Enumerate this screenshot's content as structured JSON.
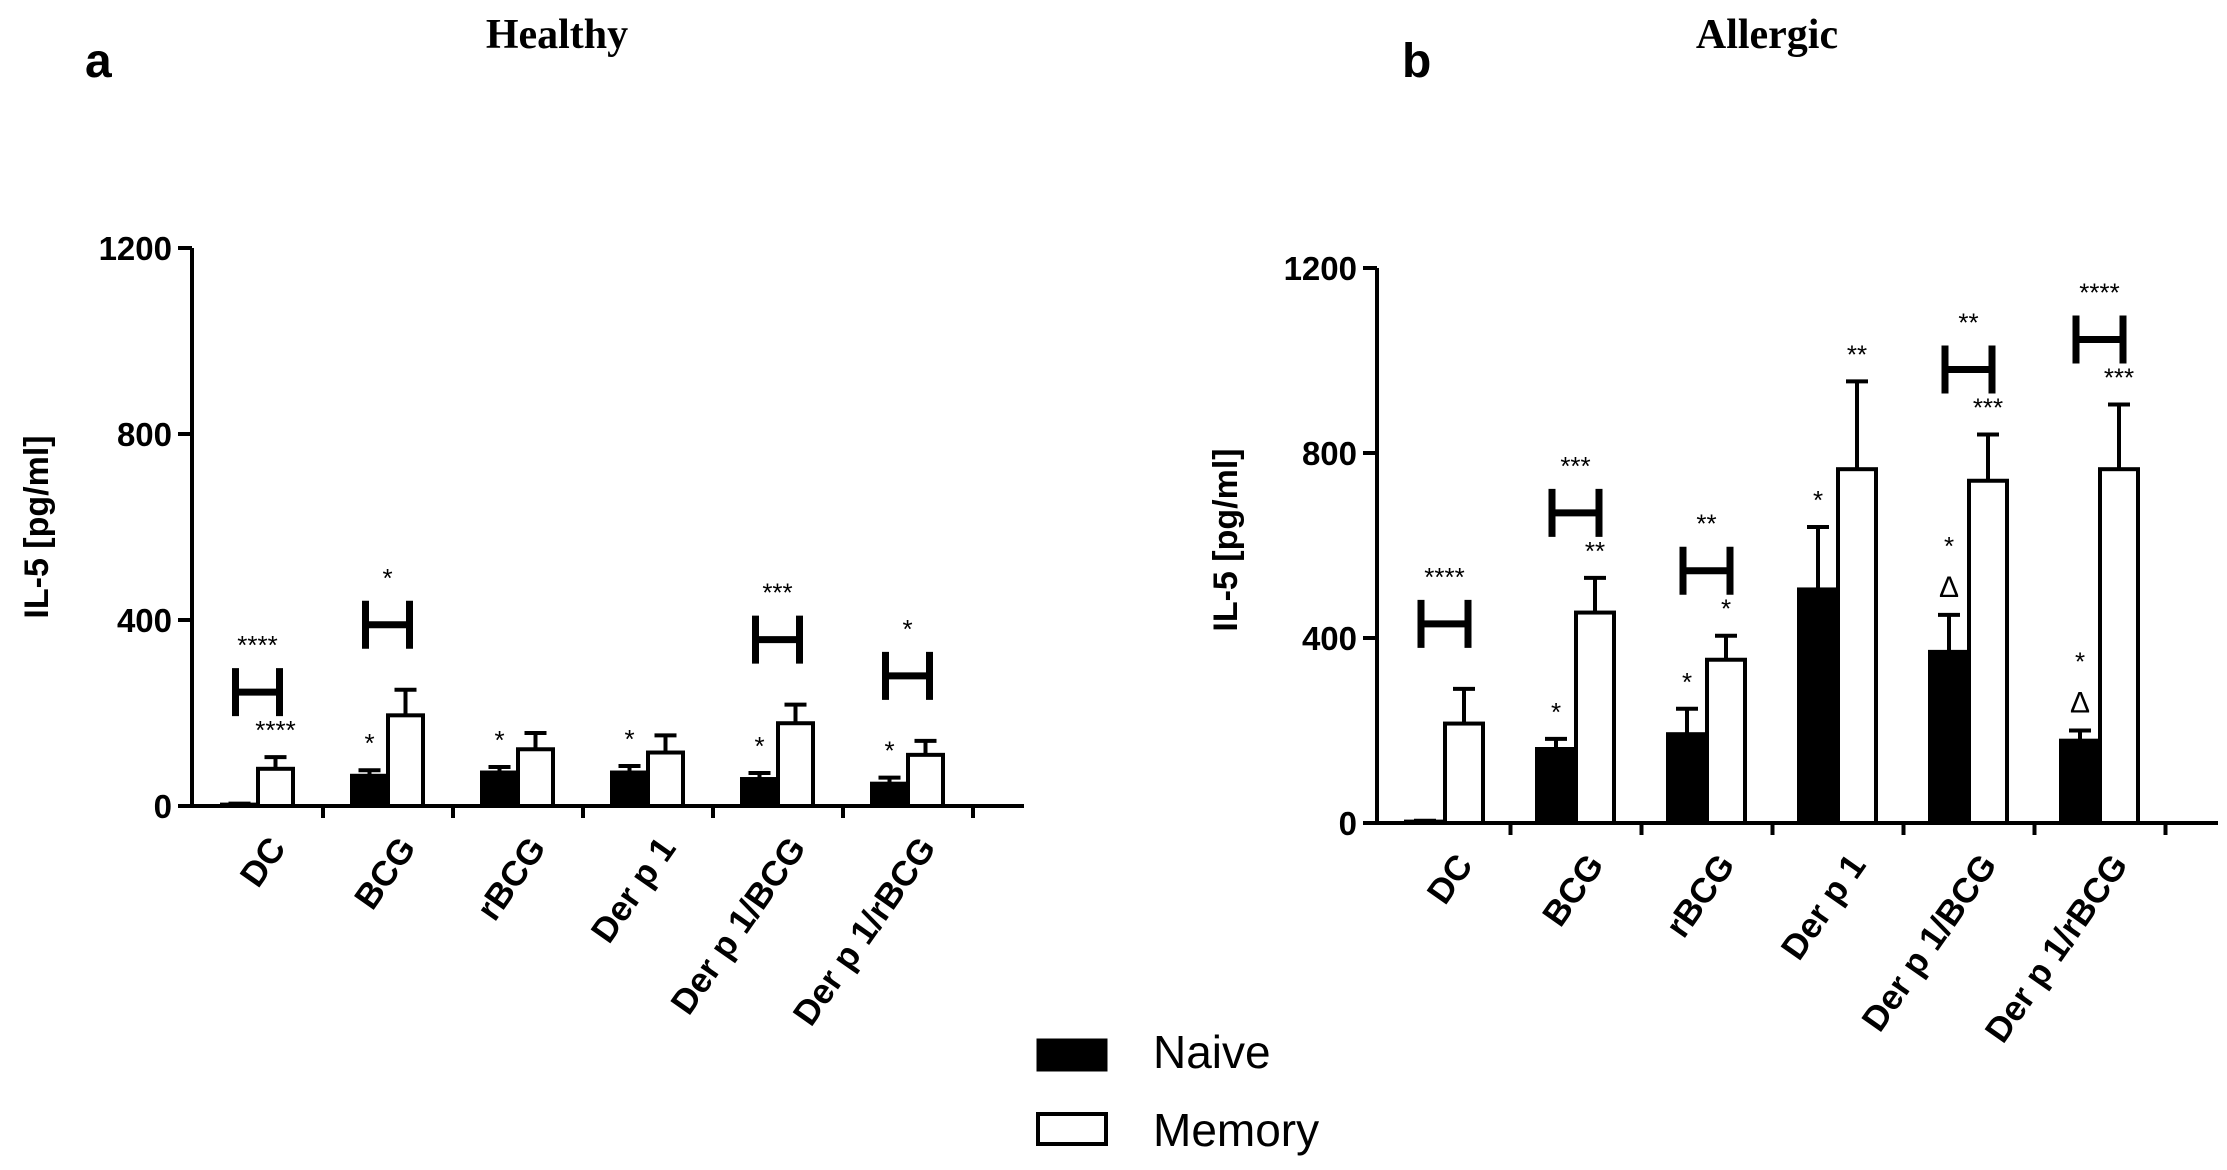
{
  "figure": {
    "legend": {
      "placement": "bottom-center",
      "items": [
        {
          "label": "Naive",
          "fill": "#000000"
        },
        {
          "label": "Memory",
          "fill": "#ffffff"
        }
      ]
    }
  },
  "chart_data": [
    {
      "type": "bar",
      "panel_letter": "a",
      "title": "Healthy",
      "ylabel": "IL-5 [pg/ml]",
      "xlabel": "",
      "ylim": [
        0,
        1200
      ],
      "yticks": [
        0,
        400,
        800,
        1200
      ],
      "categories": [
        "DC",
        "BCG",
        "rBCG",
        "Der p 1",
        "Der p 1/BCG",
        "Der p 1/rBCG"
      ],
      "series": [
        {
          "name": "Naive",
          "color": "#000000",
          "values": [
            3,
            65,
            72,
            72,
            58,
            48
          ],
          "errors": [
            2,
            12,
            12,
            14,
            13,
            13
          ],
          "labels": [
            "",
            "*",
            "*",
            "*",
            "*",
            "*"
          ]
        },
        {
          "name": "Memory",
          "color": "#ffffff",
          "values": [
            80,
            195,
            122,
            115,
            178,
            110
          ],
          "errors": [
            25,
            55,
            35,
            37,
            40,
            30
          ],
          "labels": [
            "****",
            "",
            "",
            "",
            "",
            ""
          ]
        }
      ],
      "comparisons": [
        {
          "category": "DC",
          "label": "****"
        },
        {
          "category": "BCG",
          "label": "*"
        },
        {
          "category": "Der p 1/BCG",
          "label": "***"
        },
        {
          "category": "Der p 1/rBCG",
          "label": "*"
        }
      ]
    },
    {
      "type": "bar",
      "panel_letter": "b",
      "title": "Allergic",
      "ylabel": "IL-5 [pg/ml]",
      "xlabel": "",
      "ylim": [
        0,
        1200
      ],
      "yticks": [
        0,
        400,
        800,
        1200
      ],
      "categories": [
        "DC",
        "BCG",
        "rBCG",
        "Der p 1",
        "Der p 1/BCG",
        "Der p 1/rBCG"
      ],
      "series": [
        {
          "name": "Naive",
          "color": "#000000",
          "values": [
            3,
            160,
            192,
            505,
            370,
            178
          ],
          "errors": [
            2,
            22,
            55,
            135,
            80,
            22
          ],
          "labels": [
            "",
            "*",
            "*",
            "*",
            "*\nΔ",
            "*\nΔ"
          ]
        },
        {
          "name": "Memory",
          "color": "#ffffff",
          "values": [
            215,
            455,
            353,
            765,
            740,
            765
          ],
          "errors": [
            75,
            75,
            52,
            190,
            100,
            140
          ],
          "labels": [
            "",
            "**",
            "*",
            "**",
            "***",
            "***"
          ]
        }
      ],
      "comparisons": [
        {
          "category": "DC",
          "label": "****"
        },
        {
          "category": "BCG",
          "label": "***"
        },
        {
          "category": "rBCG",
          "label": "**"
        },
        {
          "category": "Der p 1/BCG",
          "label": "**"
        },
        {
          "category": "Der p 1/rBCG",
          "label": "****"
        }
      ]
    }
  ]
}
